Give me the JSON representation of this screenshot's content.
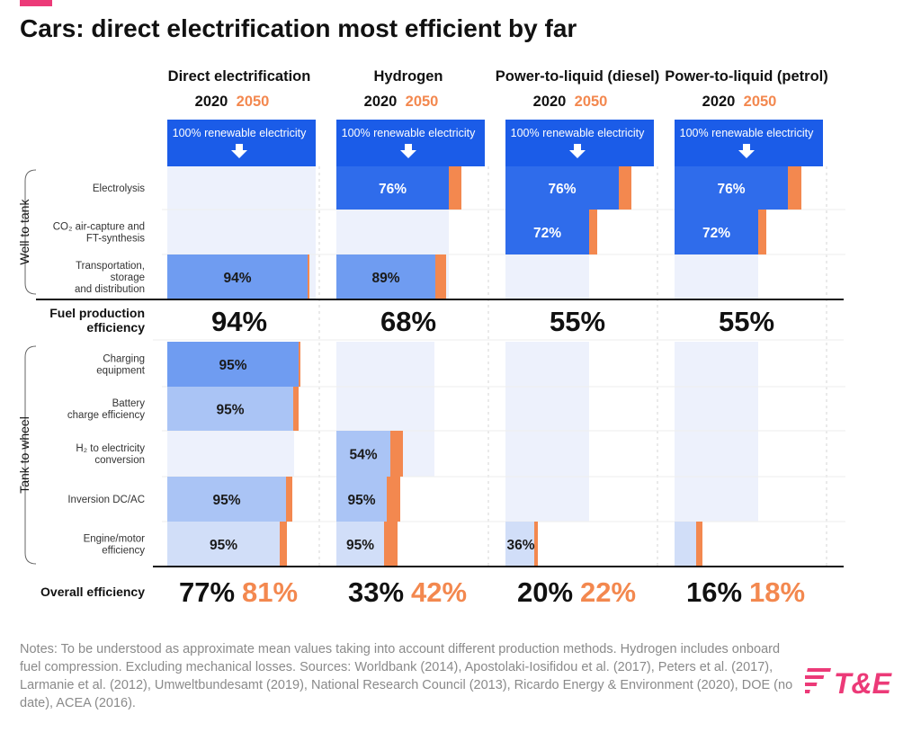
{
  "title": "Cars: direct electrification most efficient by far",
  "colors": {
    "year2020": "#111111",
    "year2050": "#f3884f",
    "header": "#1b5ce8",
    "step_dark": "#2f6ceb",
    "step_mid": "#6f9cf1",
    "step_light": "#aac4f5",
    "step_pale": "#d1def8",
    "gain_2050": "#f3884f",
    "ghost": "#edf1fc",
    "accent": "#ec3a78"
  },
  "chart_data": {
    "type": "table",
    "year_labels": [
      "2020",
      "2050"
    ],
    "header_text": "100% renewable electricity",
    "columns": [
      {
        "name": "Direct electrification",
        "fuel_production_efficiency": "94%",
        "overall_2020": "77%",
        "overall_2050": "81%"
      },
      {
        "name": "Hydrogen",
        "fuel_production_efficiency": "68%",
        "overall_2020": "33%",
        "overall_2050": "42%"
      },
      {
        "name": "Power-to-liquid (diesel)",
        "fuel_production_efficiency": "55%",
        "overall_2020": "20%",
        "overall_2050": "22%"
      },
      {
        "name": "Power-to-liquid (petrol)",
        "fuel_production_efficiency": "55%",
        "overall_2020": "16%",
        "overall_2050": "18%"
      }
    ],
    "groups": [
      {
        "label": "Well to tank",
        "rows": [
          0,
          1,
          2
        ]
      },
      {
        "label": "Tank to wheel",
        "rows": [
          3,
          4,
          5,
          6,
          7
        ]
      }
    ],
    "rows": [
      {
        "label_lines": [
          "Electrolysis"
        ],
        "cells": [
          null,
          {
            "value": "76%"
          },
          {
            "value": "76%"
          },
          {
            "value": "76%"
          }
        ]
      },
      {
        "label_lines": [
          "CO₂ air-capture and",
          "FT-synthesis"
        ],
        "cells": [
          null,
          null,
          {
            "value": "72%"
          },
          {
            "value": "72%"
          }
        ]
      },
      {
        "label_lines": [
          "Transportation,",
          "storage",
          "and distribution"
        ],
        "cells": [
          {
            "value": "94%"
          },
          {
            "value": "89%"
          },
          null,
          null
        ]
      },
      {
        "label_lines": [
          "Charging",
          "equipment"
        ],
        "cells": [
          {
            "value": "95%"
          },
          null,
          null,
          null
        ]
      },
      {
        "label_lines": [
          "Battery",
          "charge efficiency"
        ],
        "cells": [
          {
            "value": "95%"
          },
          null,
          null,
          null
        ]
      },
      {
        "label_lines": [
          "H₂ to electricity",
          "conversion"
        ],
        "cells": [
          null,
          {
            "value": "54%"
          },
          null,
          null
        ]
      },
      {
        "label_lines": [
          "Inversion DC/AC"
        ],
        "cells": [
          {
            "value": "95%"
          },
          {
            "value": "95%"
          },
          null,
          null
        ]
      },
      {
        "label_lines": [
          "Engine/motor",
          "efficiency"
        ],
        "cells": [
          {
            "value": "95%"
          },
          {
            "value": "95%"
          },
          {
            "value": "36%"
          },
          {
            "value": ""
          }
        ]
      }
    ],
    "summary_rows": {
      "fuel_production": [
        "Fuel production",
        "efficiency"
      ],
      "overall": "Overall efficiency"
    }
  },
  "notes": "Notes: To be understood as approximate mean values taking into account different production methods. Hydrogen includes onboard fuel compression. Excluding mechanical losses. Sources: Worldbank (2014), Apostolaki-Iosifidou et al. (2017), Peters et al. (2017), Larmanie et al. (2012), Umweltbundesamt (2019), National Research Council (2013), Ricardo Energy & Environment (2020), DOE (no date), ACEA (2016).",
  "logo": {
    "text": "T&E",
    "color": "#ec3a78"
  }
}
